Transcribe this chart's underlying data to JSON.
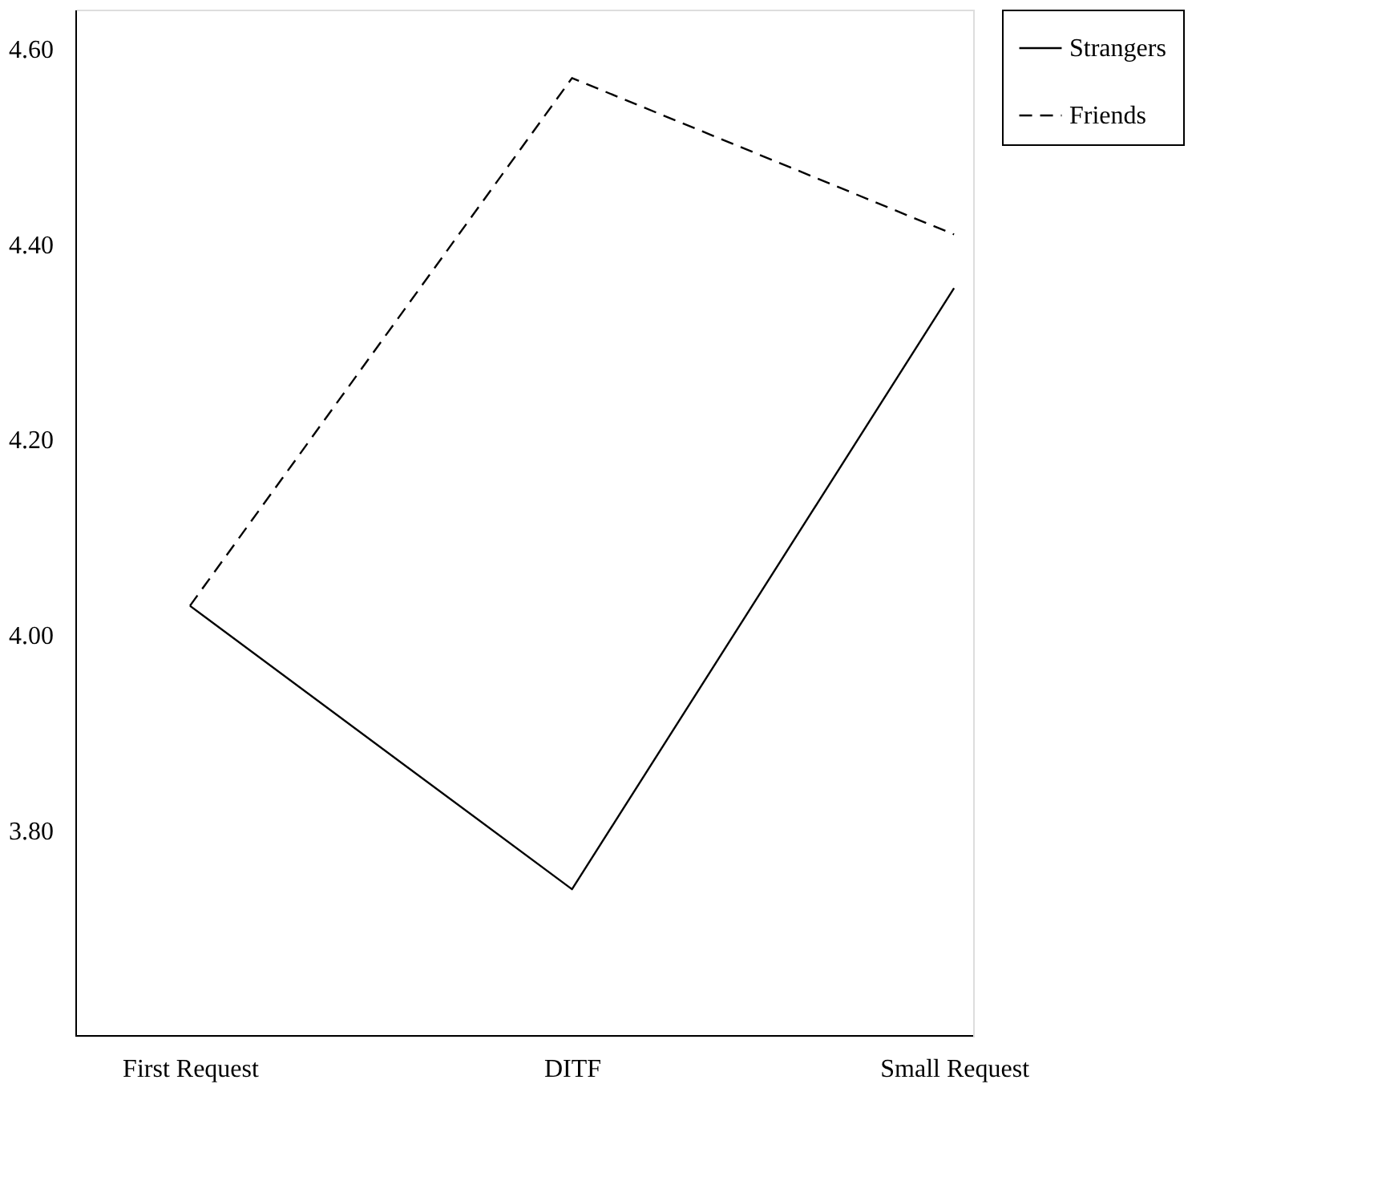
{
  "chart_data": {
    "type": "line",
    "categories": [
      "First Request",
      "DITF",
      "Small Request"
    ],
    "series": [
      {
        "name": "Strangers",
        "color": "#000000",
        "line_style": "solid",
        "values": [
          4.03,
          3.74,
          4.355
        ]
      },
      {
        "name": "Friends",
        "color": "#000000",
        "line_style": "dashed",
        "values": [
          4.03,
          4.57,
          4.41
        ]
      }
    ],
    "ylim": [
      3.59,
      4.64
    ],
    "yticks": [
      {
        "value": 3.8,
        "label": "3.80"
      },
      {
        "value": 4.0,
        "label": "4.00"
      },
      {
        "value": 4.2,
        "label": "4.20"
      },
      {
        "value": 4.4,
        "label": "4.40"
      },
      {
        "value": 4.6,
        "label": "4.60"
      }
    ],
    "grid": false,
    "legend": "top right",
    "marker": "none"
  }
}
